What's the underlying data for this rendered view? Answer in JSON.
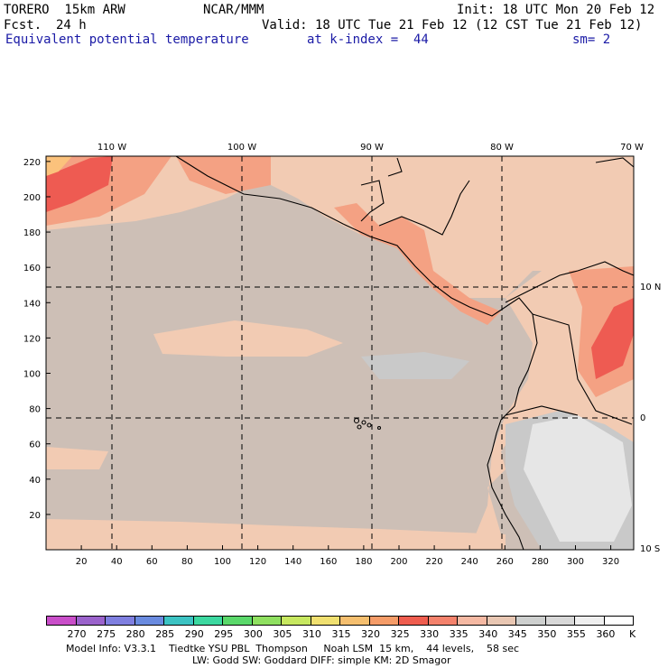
{
  "header": {
    "model": "TORERO  15km ARW",
    "org": "NCAR/MMM",
    "init": "Init: 18 UTC Mon 20 Feb 12",
    "fcst_label": "Fcst.",
    "fcst_value": "24 h",
    "valid": "Valid: 18 UTC Tue 21 Feb 12 (12 CST Tue 21 Feb 12)",
    "field": "Equivalent potential temperature",
    "level": "at k-index =  44",
    "smooth": "sm= 2"
  },
  "map": {
    "lon_labels": [
      "110 W",
      "100 W",
      "90 W",
      "80 W",
      "70 W"
    ],
    "lat_labels": [
      "10 N",
      "0",
      "10 S"
    ],
    "x_ticks": [
      "20",
      "40",
      "60",
      "80",
      "100",
      "120",
      "140",
      "160",
      "180",
      "200",
      "220",
      "240",
      "260",
      "280",
      "300",
      "320"
    ],
    "y_ticks": [
      "20",
      "40",
      "60",
      "80",
      "100",
      "120",
      "140",
      "160",
      "180",
      "200",
      "220"
    ],
    "colors": {
      "ocean": "#cdbfb6",
      "light_orange": "#f2cbb3",
      "salmon": "#f4a183",
      "red": "#ee5b52",
      "gray": "#c9c9c9",
      "light_gray": "#e6e6e6",
      "peach": "#fbc27c"
    }
  },
  "colorbar": {
    "labels": [
      "270",
      "275",
      "280",
      "285",
      "290",
      "295",
      "300",
      "305",
      "310",
      "315",
      "320",
      "325",
      "330",
      "335",
      "340",
      "345",
      "350",
      "355",
      "360"
    ],
    "unit": "K",
    "colors": [
      "#c94ec9",
      "#9b63cc",
      "#7f7fe0",
      "#6a8be0",
      "#3cc3c3",
      "#3cd8a0",
      "#5ad86a",
      "#8fe060",
      "#c7e860",
      "#f0e070",
      "#f5bf6f",
      "#f59c68",
      "#ef5d4f",
      "#f4826c",
      "#f5b9a3",
      "#e9c7b3",
      "#ced0cf",
      "#d8d8d8",
      "#efefef",
      "#ffffff"
    ]
  },
  "footer": {
    "line1": "Model Info: V3.3.1    Tiedtke YSU PBL  Thompson     Noah LSM  15 km,    44 levels,    58 sec",
    "line2": "LW: Godd SW: Goddard DIFF: simple KM: 2D Smagor"
  }
}
